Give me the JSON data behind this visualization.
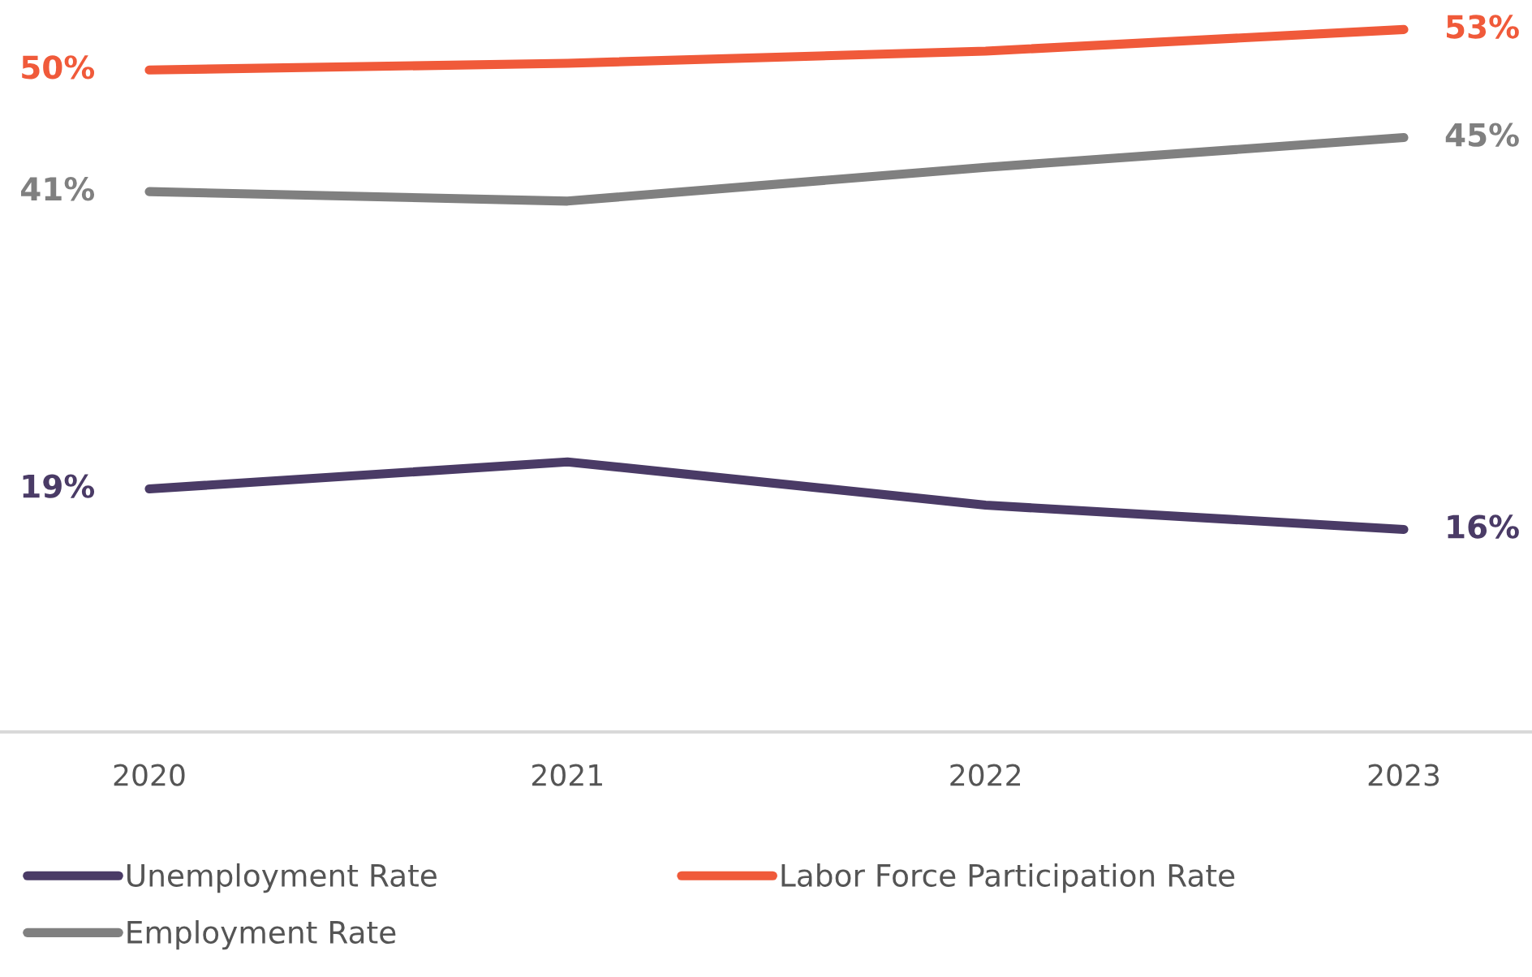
{
  "chart_data": {
    "type": "line",
    "categories": [
      "2020",
      "2021",
      "2022",
      "2023"
    ],
    "series": [
      {
        "name": "Unemployment Rate",
        "color": "#4a3b66",
        "values": [
          19,
          21,
          17.8,
          16
        ],
        "value_labels": [
          "19%",
          null,
          null,
          "16%"
        ]
      },
      {
        "name": "Labor Force Participation Rate",
        "color": "#f05a3a",
        "values": [
          50,
          50.5,
          51.4,
          53
        ],
        "value_labels": [
          "50%",
          null,
          null,
          "53%"
        ]
      },
      {
        "name": "Employment Rate",
        "color": "#808080",
        "values": [
          41,
          40.3,
          42.8,
          45
        ],
        "value_labels": [
          "41%",
          null,
          null,
          "45%"
        ]
      }
    ],
    "grid": false,
    "legend": "bottom",
    "marker": "none",
    "line_style": "solid",
    "tick_labels": "x"
  }
}
